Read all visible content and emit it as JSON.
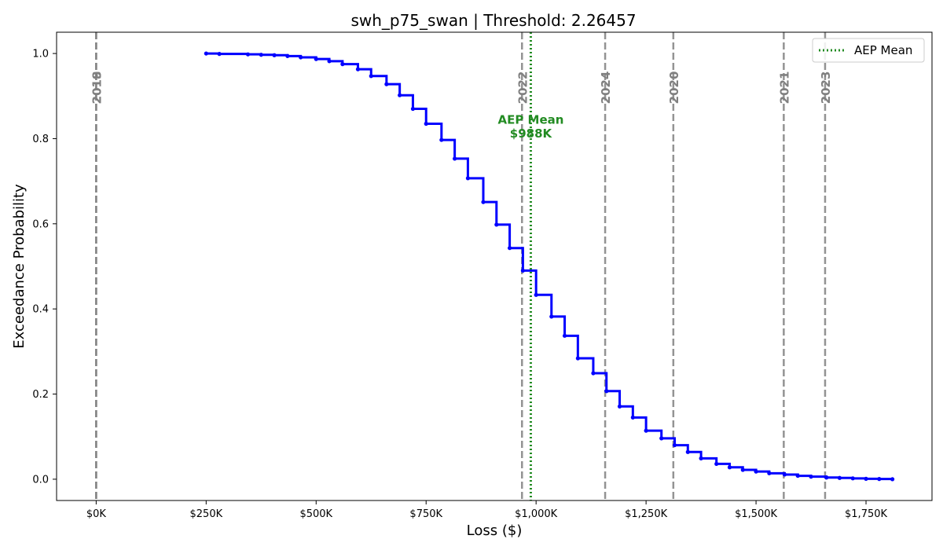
{
  "chart_data": {
    "type": "line",
    "title": "swh_p75_swan | Threshold: 2.26457",
    "xlabel": "Loss ($)",
    "ylabel": "Exceedance Probability",
    "xlim": [
      -90000,
      1900000
    ],
    "ylim": [
      -0.05,
      1.05
    ],
    "x_ticks": [
      {
        "value": 0,
        "label": "$0K"
      },
      {
        "value": 250000,
        "label": "$250K"
      },
      {
        "value": 500000,
        "label": "$500K"
      },
      {
        "value": 750000,
        "label": "$750K"
      },
      {
        "value": 1000000,
        "label": "$1,000K"
      },
      {
        "value": 1250000,
        "label": "$1,250K"
      },
      {
        "value": 1500000,
        "label": "$1,500K"
      },
      {
        "value": 1750000,
        "label": "$1,750K"
      }
    ],
    "y_ticks": [
      {
        "value": 0.0,
        "label": "0.0"
      },
      {
        "value": 0.2,
        "label": "0.2"
      },
      {
        "value": 0.4,
        "label": "0.4"
      },
      {
        "value": 0.6,
        "label": "0.6"
      },
      {
        "value": 0.8,
        "label": "0.8"
      },
      {
        "value": 1.0,
        "label": "1.0"
      }
    ],
    "grid": false,
    "legend": {
      "placement": "top-right",
      "entries": [
        {
          "label": "AEP Mean",
          "color": "#228B22",
          "style": "dotted"
        }
      ]
    },
    "series": [
      {
        "name": "",
        "color": "#0000ff",
        "style": "step",
        "points": [
          [
            250000,
            1.0
          ],
          [
            280000,
            0.999
          ],
          [
            345000,
            0.998
          ],
          [
            375000,
            0.997
          ],
          [
            405000,
            0.996
          ],
          [
            435000,
            0.994
          ],
          [
            465000,
            0.991
          ],
          [
            500000,
            0.987
          ],
          [
            530000,
            0.982
          ],
          [
            560000,
            0.975
          ],
          [
            595000,
            0.963
          ],
          [
            625000,
            0.947
          ],
          [
            660000,
            0.928
          ],
          [
            690000,
            0.902
          ],
          [
            720000,
            0.87
          ],
          [
            750000,
            0.835
          ],
          [
            785000,
            0.797
          ],
          [
            815000,
            0.753
          ],
          [
            845000,
            0.707
          ],
          [
            880000,
            0.651
          ],
          [
            910000,
            0.598
          ],
          [
            940000,
            0.543
          ],
          [
            970000,
            0.49
          ],
          [
            1000000,
            0.433
          ],
          [
            1035000,
            0.382
          ],
          [
            1065000,
            0.337
          ],
          [
            1095000,
            0.284
          ],
          [
            1130000,
            0.249
          ],
          [
            1160000,
            0.207
          ],
          [
            1190000,
            0.171
          ],
          [
            1220000,
            0.145
          ],
          [
            1250000,
            0.114
          ],
          [
            1285000,
            0.096
          ],
          [
            1315000,
            0.08
          ],
          [
            1345000,
            0.064
          ],
          [
            1375000,
            0.049
          ],
          [
            1410000,
            0.036
          ],
          [
            1440000,
            0.028
          ],
          [
            1470000,
            0.022
          ],
          [
            1500000,
            0.018
          ],
          [
            1530000,
            0.014
          ],
          [
            1565000,
            0.011
          ],
          [
            1595000,
            0.008
          ],
          [
            1625000,
            0.006
          ],
          [
            1660000,
            0.004
          ],
          [
            1690000,
            0.003
          ],
          [
            1720000,
            0.002
          ],
          [
            1750000,
            0.001
          ],
          [
            1780000,
            0.0005
          ],
          [
            1810000,
            0.0
          ]
        ]
      }
    ],
    "vertical_lines": [
      {
        "x": 0,
        "label": "2019",
        "color": "#808080",
        "style": "dashed"
      },
      {
        "x": 0,
        "label": "2018",
        "color": "#808080",
        "style": "dashed"
      },
      {
        "x": 968000,
        "label": "2022",
        "color": "#808080",
        "style": "dashed"
      },
      {
        "x": 1157000,
        "label": "2024",
        "color": "#808080",
        "style": "dashed"
      },
      {
        "x": 1312000,
        "label": "2020",
        "color": "#808080",
        "style": "dashed"
      },
      {
        "x": 1563000,
        "label": "2021",
        "color": "#808080",
        "style": "dashed"
      },
      {
        "x": 1657000,
        "label": "2023",
        "color": "#808080",
        "style": "dashed"
      }
    ],
    "mean_line": {
      "x": 988000,
      "color": "#228B22",
      "style": "dotted",
      "label_line1": "AEP Mean",
      "label_line2": "$988K"
    }
  }
}
